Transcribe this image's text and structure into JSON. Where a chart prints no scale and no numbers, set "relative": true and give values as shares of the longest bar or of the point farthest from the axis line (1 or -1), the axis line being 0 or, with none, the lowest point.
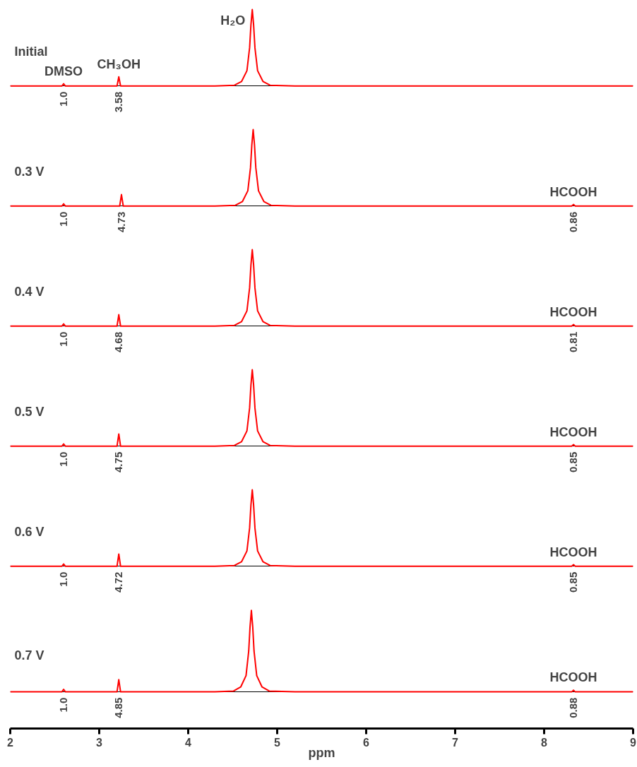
{
  "chart_data": [
    {
      "type": "line",
      "title": "Initial",
      "relative": true,
      "xlim": [
        2,
        9
      ],
      "tick_labels": false,
      "x": [
        2.0,
        2.58,
        2.6,
        2.62,
        3.2,
        3.22,
        3.24,
        4.3,
        4.52,
        4.6,
        4.66,
        4.69,
        4.705,
        4.72,
        4.735,
        4.75,
        4.78,
        4.84,
        4.92,
        5.2,
        9.0
      ],
      "series": [
        {
          "color": "#ff0000",
          "values": [
            0,
            0,
            0.03,
            0,
            0,
            0.12,
            0,
            0,
            0.01,
            0.06,
            0.2,
            0.5,
            0.8,
            1,
            0.8,
            0.5,
            0.2,
            0.06,
            0.01,
            0,
            0
          ]
        }
      ],
      "annotations": [
        {
          "text": "DMSO",
          "x": 2.6,
          "y": 0.03
        },
        {
          "text": "CH₃OH",
          "x": 3.22,
          "y": 0.12
        },
        {
          "text": "H₂O",
          "x": 4.72,
          "y": 1
        },
        {
          "text": "1.0",
          "x": 2.6,
          "y": 0
        },
        {
          "text": "3.58",
          "x": 3.22,
          "y": 0
        }
      ]
    },
    {
      "type": "line",
      "title": "0.3 V",
      "relative": true,
      "xlim": [
        2,
        9
      ],
      "tick_labels": false,
      "x": [
        2.0,
        2.58,
        2.6,
        2.62,
        3.23,
        3.25,
        3.27,
        4.3,
        4.53,
        4.61,
        4.67,
        4.7,
        4.715,
        4.73,
        4.745,
        4.76,
        4.79,
        4.85,
        4.93,
        5.2,
        8.31,
        8.33,
        8.35,
        9.0
      ],
      "series": [
        {
          "color": "#ff0000",
          "values": [
            0,
            0,
            0.03,
            0,
            0,
            0.15,
            0,
            0,
            0.01,
            0.06,
            0.2,
            0.5,
            0.8,
            1,
            0.8,
            0.5,
            0.2,
            0.06,
            0.01,
            0,
            0,
            0.02,
            0,
            0
          ]
        }
      ],
      "annotations": [
        {
          "text": "HCOOH",
          "x": 8.33,
          "y": 0.02
        },
        {
          "text": "1.0",
          "x": 2.6,
          "y": 0
        },
        {
          "text": "4.73",
          "x": 3.25,
          "y": 0
        },
        {
          "text": "0.86",
          "x": 8.33,
          "y": 0
        }
      ]
    },
    {
      "type": "line",
      "title": "0.4 V",
      "relative": true,
      "xlim": [
        2,
        9
      ],
      "tick_labels": false,
      "x": [
        2.0,
        2.58,
        2.6,
        2.62,
        3.2,
        3.22,
        3.24,
        4.3,
        4.52,
        4.6,
        4.66,
        4.69,
        4.705,
        4.72,
        4.735,
        4.75,
        4.78,
        4.84,
        4.92,
        5.2,
        8.31,
        8.33,
        8.35,
        9.0
      ],
      "series": [
        {
          "color": "#ff0000",
          "values": [
            0,
            0,
            0.03,
            0,
            0,
            0.15,
            0,
            0,
            0.01,
            0.06,
            0.2,
            0.5,
            0.8,
            1,
            0.8,
            0.5,
            0.2,
            0.06,
            0.01,
            0,
            0,
            0.02,
            0,
            0
          ]
        }
      ],
      "annotations": [
        {
          "text": "HCOOH",
          "x": 8.33,
          "y": 0.02
        },
        {
          "text": "1.0",
          "x": 2.6,
          "y": 0
        },
        {
          "text": "4.68",
          "x": 3.22,
          "y": 0
        },
        {
          "text": "0.81",
          "x": 8.33,
          "y": 0
        }
      ]
    },
    {
      "type": "line",
      "title": "0.5 V",
      "relative": true,
      "xlim": [
        2,
        9
      ],
      "tick_labels": false,
      "x": [
        2.0,
        2.58,
        2.6,
        2.62,
        3.2,
        3.22,
        3.24,
        4.3,
        4.52,
        4.6,
        4.66,
        4.69,
        4.705,
        4.72,
        4.735,
        4.75,
        4.78,
        4.84,
        4.92,
        5.2,
        8.31,
        8.33,
        8.35,
        9.0
      ],
      "series": [
        {
          "color": "#ff0000",
          "values": [
            0,
            0,
            0.03,
            0,
            0,
            0.16,
            0,
            0,
            0.01,
            0.06,
            0.2,
            0.5,
            0.8,
            1,
            0.8,
            0.5,
            0.2,
            0.06,
            0.01,
            0,
            0,
            0.02,
            0,
            0
          ]
        }
      ],
      "annotations": [
        {
          "text": "HCOOH",
          "x": 8.33,
          "y": 0.02
        },
        {
          "text": "1.0",
          "x": 2.6,
          "y": 0
        },
        {
          "text": "4.75",
          "x": 3.22,
          "y": 0
        },
        {
          "text": "0.85",
          "x": 8.33,
          "y": 0
        }
      ]
    },
    {
      "type": "line",
      "title": "0.6 V",
      "relative": true,
      "xlim": [
        2,
        9
      ],
      "tick_labels": false,
      "x": [
        2.0,
        2.58,
        2.6,
        2.62,
        3.2,
        3.22,
        3.24,
        4.3,
        4.52,
        4.6,
        4.66,
        4.69,
        4.705,
        4.72,
        4.735,
        4.75,
        4.78,
        4.84,
        4.92,
        5.2,
        8.31,
        8.33,
        8.35,
        9.0
      ],
      "series": [
        {
          "color": "#ff0000",
          "values": [
            0,
            0,
            0.03,
            0,
            0,
            0.16,
            0,
            0,
            0.01,
            0.06,
            0.2,
            0.5,
            0.8,
            1,
            0.8,
            0.5,
            0.2,
            0.06,
            0.01,
            0,
            0,
            0.02,
            0,
            0
          ]
        }
      ],
      "annotations": [
        {
          "text": "HCOOH",
          "x": 8.33,
          "y": 0.02
        },
        {
          "text": "1.0",
          "x": 2.6,
          "y": 0
        },
        {
          "text": "4.72",
          "x": 3.22,
          "y": 0
        },
        {
          "text": "0.85",
          "x": 8.33,
          "y": 0
        }
      ]
    },
    {
      "type": "line",
      "title": "0.7 V",
      "relative": true,
      "xlim": [
        2,
        9
      ],
      "xticks": [
        2,
        3,
        4,
        5,
        6,
        7,
        8,
        9
      ],
      "xlabel": "ppm",
      "tick_labels": "x",
      "x": [
        2.0,
        2.58,
        2.6,
        2.62,
        3.2,
        3.22,
        3.24,
        4.3,
        4.51,
        4.59,
        4.65,
        4.68,
        4.695,
        4.71,
        4.725,
        4.74,
        4.77,
        4.83,
        4.91,
        5.2,
        8.31,
        8.33,
        8.35,
        9.0
      ],
      "series": [
        {
          "color": "#ff0000",
          "values": [
            0,
            0,
            0.03,
            0,
            0,
            0.15,
            0,
            0,
            0.01,
            0.06,
            0.2,
            0.5,
            0.8,
            1,
            0.8,
            0.5,
            0.2,
            0.06,
            0.01,
            0,
            0,
            0.02,
            0,
            0
          ]
        }
      ],
      "annotations": [
        {
          "text": "HCOOH",
          "x": 8.33,
          "y": 0.02
        },
        {
          "text": "1.0",
          "x": 2.6,
          "y": 0
        },
        {
          "text": "4.85",
          "x": 3.22,
          "y": 0
        },
        {
          "text": "0.88",
          "x": 8.33,
          "y": 0
        }
      ]
    }
  ]
}
